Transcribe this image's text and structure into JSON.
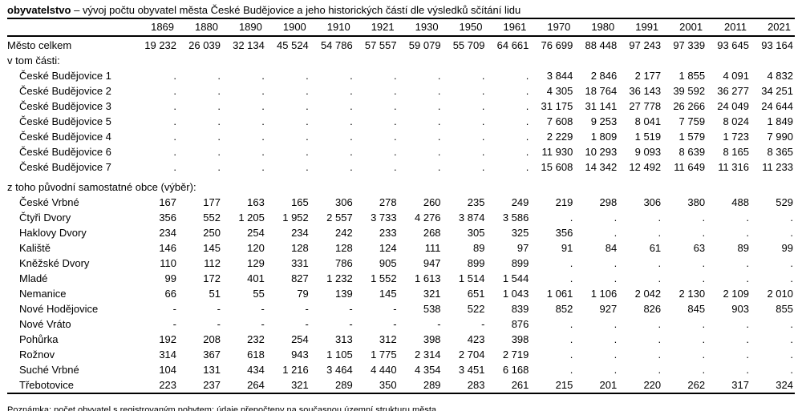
{
  "title": {
    "keyword": "obyvatelstvo",
    "rest": " – vývoj počtu obyvatel města České Budějovice a jeho historických částí dle výsledků sčítání lidu"
  },
  "chart_data": {
    "type": "table",
    "title": "obyvatelstvo – vývoj počtu obyvatel města České Budějovice a jeho historických částí dle výsledků sčítání lidu",
    "columns": [
      "1869",
      "1880",
      "1890",
      "1900",
      "1910",
      "1921",
      "1930",
      "1950",
      "1961",
      "1970",
      "1980",
      "1991",
      "2001",
      "2011",
      "2021"
    ],
    "rows": [
      {
        "label": "Město celkem",
        "indent": 0,
        "values": [
          "19 232",
          "26 039",
          "32 134",
          "45 524",
          "54 786",
          "57 557",
          "59 079",
          "55 709",
          "64 661",
          "76 699",
          "88 448",
          "97 243",
          "97 339",
          "93 645",
          "93 164"
        ]
      },
      {
        "label": "v tom části:",
        "indent": 0,
        "values": []
      },
      {
        "label": "České Budějovice 1",
        "indent": 1,
        "values": [
          ".",
          ".",
          ".",
          ".",
          ".",
          ".",
          ".",
          ".",
          ".",
          "3 844",
          "2 846",
          "2 177",
          "1 855",
          "4 091",
          "4 832"
        ]
      },
      {
        "label": "České Budějovice 2",
        "indent": 1,
        "values": [
          ".",
          ".",
          ".",
          ".",
          ".",
          ".",
          ".",
          ".",
          ".",
          "4 305",
          "18 764",
          "36 143",
          "39 592",
          "36 277",
          "34 251"
        ]
      },
      {
        "label": "České Budějovice 3",
        "indent": 1,
        "values": [
          ".",
          ".",
          ".",
          ".",
          ".",
          ".",
          ".",
          ".",
          ".",
          "31 175",
          "31 141",
          "27 778",
          "26 266",
          "24 049",
          "24 644"
        ]
      },
      {
        "label": "České Budějovice 5",
        "indent": 1,
        "values": [
          ".",
          ".",
          ".",
          ".",
          ".",
          ".",
          ".",
          ".",
          ".",
          "7 608",
          "9 253",
          "8 041",
          "7 759",
          "8 024",
          "1 849"
        ]
      },
      {
        "label": "České Budějovice 4",
        "indent": 1,
        "values": [
          ".",
          ".",
          ".",
          ".",
          ".",
          ".",
          ".",
          ".",
          ".",
          "2 229",
          "1 809",
          "1 519",
          "1 579",
          "1 723",
          "7 990"
        ]
      },
      {
        "label": "České Budějovice 6",
        "indent": 1,
        "values": [
          ".",
          ".",
          ".",
          ".",
          ".",
          ".",
          ".",
          ".",
          ".",
          "11 930",
          "10 293",
          "9 093",
          "8 639",
          "8 165",
          "8 365"
        ]
      },
      {
        "label": "České Budějovice 7",
        "indent": 1,
        "values": [
          ".",
          ".",
          ".",
          ".",
          ".",
          ".",
          ".",
          ".",
          ".",
          "15 608",
          "14 342",
          "12 492",
          "11 649",
          "11 316",
          "11 233"
        ]
      },
      {
        "label": "",
        "indent": 0,
        "values": [],
        "type": "spacer"
      },
      {
        "label": "z toho původní samostatné obce (výběr):",
        "indent": 0,
        "values": []
      },
      {
        "label": "České Vrbné",
        "indent": 1,
        "values": [
          "167",
          "177",
          "163",
          "165",
          "306",
          "278",
          "260",
          "235",
          "249",
          "219",
          "298",
          "306",
          "380",
          "488",
          "529"
        ]
      },
      {
        "label": "Čtyři Dvory",
        "indent": 1,
        "values": [
          "356",
          "552",
          "1 205",
          "1 952",
          "2 557",
          "3 733",
          "4 276",
          "3 874",
          "3 586",
          ".",
          ".",
          ".",
          ".",
          ".",
          "."
        ]
      },
      {
        "label": "Haklovy Dvory",
        "indent": 1,
        "values": [
          "234",
          "250",
          "254",
          "234",
          "242",
          "233",
          "268",
          "305",
          "325",
          "356",
          ".",
          ".",
          ".",
          ".",
          "."
        ]
      },
      {
        "label": "Kaliště",
        "indent": 1,
        "values": [
          "146",
          "145",
          "120",
          "128",
          "128",
          "124",
          "111",
          "89",
          "97",
          "91",
          "84",
          "61",
          "63",
          "89",
          "99"
        ]
      },
      {
        "label": "Kněžské Dvory",
        "indent": 1,
        "values": [
          "110",
          "112",
          "129",
          "331",
          "786",
          "905",
          "947",
          "899",
          "899",
          ".",
          ".",
          ".",
          ".",
          ".",
          "."
        ]
      },
      {
        "label": "Mladé",
        "indent": 1,
        "values": [
          "99",
          "172",
          "401",
          "827",
          "1 232",
          "1 552",
          "1 613",
          "1 514",
          "1 544",
          ".",
          ".",
          ".",
          ".",
          ".",
          "."
        ]
      },
      {
        "label": "Nemanice",
        "indent": 1,
        "values": [
          "66",
          "51",
          "55",
          "79",
          "139",
          "145",
          "321",
          "651",
          "1 043",
          "1 061",
          "1 106",
          "2 042",
          "2 130",
          "2 109",
          "2 010"
        ]
      },
      {
        "label": "Nové Hodějovice",
        "indent": 1,
        "values": [
          "-",
          "-",
          "-",
          "-",
          "-",
          "-",
          "538",
          "522",
          "839",
          "852",
          "927",
          "826",
          "845",
          "903",
          "855"
        ]
      },
      {
        "label": "Nové Vráto",
        "indent": 1,
        "values": [
          "-",
          "-",
          "-",
          "-",
          "-",
          "-",
          "-",
          "-",
          "876",
          ".",
          ".",
          ".",
          ".",
          ".",
          "."
        ]
      },
      {
        "label": "Pohůrka",
        "indent": 1,
        "values": [
          "192",
          "208",
          "232",
          "254",
          "313",
          "312",
          "398",
          "423",
          "398",
          ".",
          ".",
          ".",
          ".",
          ".",
          "."
        ]
      },
      {
        "label": "Rožnov",
        "indent": 1,
        "values": [
          "314",
          "367",
          "618",
          "943",
          "1 105",
          "1 775",
          "2 314",
          "2 704",
          "2 719",
          ".",
          ".",
          ".",
          ".",
          ".",
          "."
        ]
      },
      {
        "label": "Suché Vrbné",
        "indent": 1,
        "values": [
          "104",
          "131",
          "434",
          "1 216",
          "3 464",
          "4 440",
          "4 354",
          "3 451",
          "6 168",
          ".",
          ".",
          ".",
          ".",
          ".",
          "."
        ]
      },
      {
        "label": "Třebotovice",
        "indent": 1,
        "values": [
          "223",
          "237",
          "264",
          "321",
          "289",
          "350",
          "289",
          "283",
          "261",
          "215",
          "201",
          "220",
          "262",
          "317",
          "324"
        ]
      }
    ]
  },
  "note": "Poznámka: počet obyvatel s registrovaným pobytem; údaje přepočteny na současnou územní strukturu města"
}
